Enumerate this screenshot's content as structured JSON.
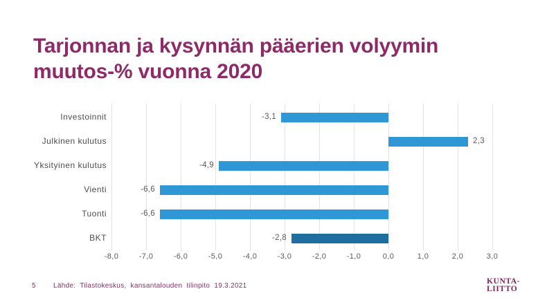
{
  "slide": {
    "title": "Tarjonnan ja kysynnän pääerien volyymin muutos-% vuonna 2020",
    "footer": {
      "page_number": "5",
      "source": "Lähde: Tilastokeskus, kansantalouden tilinpito 19.3.2021",
      "logo_line1": "KUNTA-",
      "logo_line2": "LIITTO"
    },
    "colors": {
      "title_text": "#8e2a68",
      "footer_text": "#8a2e66",
      "logo_text": "#7d2258",
      "axis_text": "#595959",
      "gridline": "#e3e3e3"
    }
  },
  "chart_data": {
    "type": "bar",
    "orientation": "horizontal",
    "title": "",
    "xlabel": "",
    "ylabel": "",
    "grid": true,
    "categories": [
      "Investoinnit",
      "Julkinen kulutus",
      "Yksityinen kulutus",
      "Vienti",
      "Tuonti",
      "BKT"
    ],
    "values": [
      -3.1,
      2.3,
      -4.9,
      -6.6,
      -6.6,
      -2.8
    ],
    "value_labels": [
      "-3,1",
      "2,3",
      "-4,9",
      "-6,6",
      "-6,6",
      "-2,8"
    ],
    "bar_colors": [
      "#2f97d5",
      "#2f97d5",
      "#2f97d5",
      "#2f97d5",
      "#2f97d5",
      "#1e6e9f"
    ],
    "xlim": [
      -8,
      3
    ],
    "x_ticks": [
      -8,
      -7,
      -6,
      -5,
      -4,
      -3,
      -2,
      -1,
      0,
      1,
      2,
      3
    ],
    "x_tick_labels": [
      "-8,0",
      "-7,0",
      "-6,0",
      "-5,0",
      "-4,0",
      "-3,0",
      "-2,0",
      "-1,0",
      "0,0",
      "1,0",
      "2,0",
      "3,0"
    ]
  }
}
